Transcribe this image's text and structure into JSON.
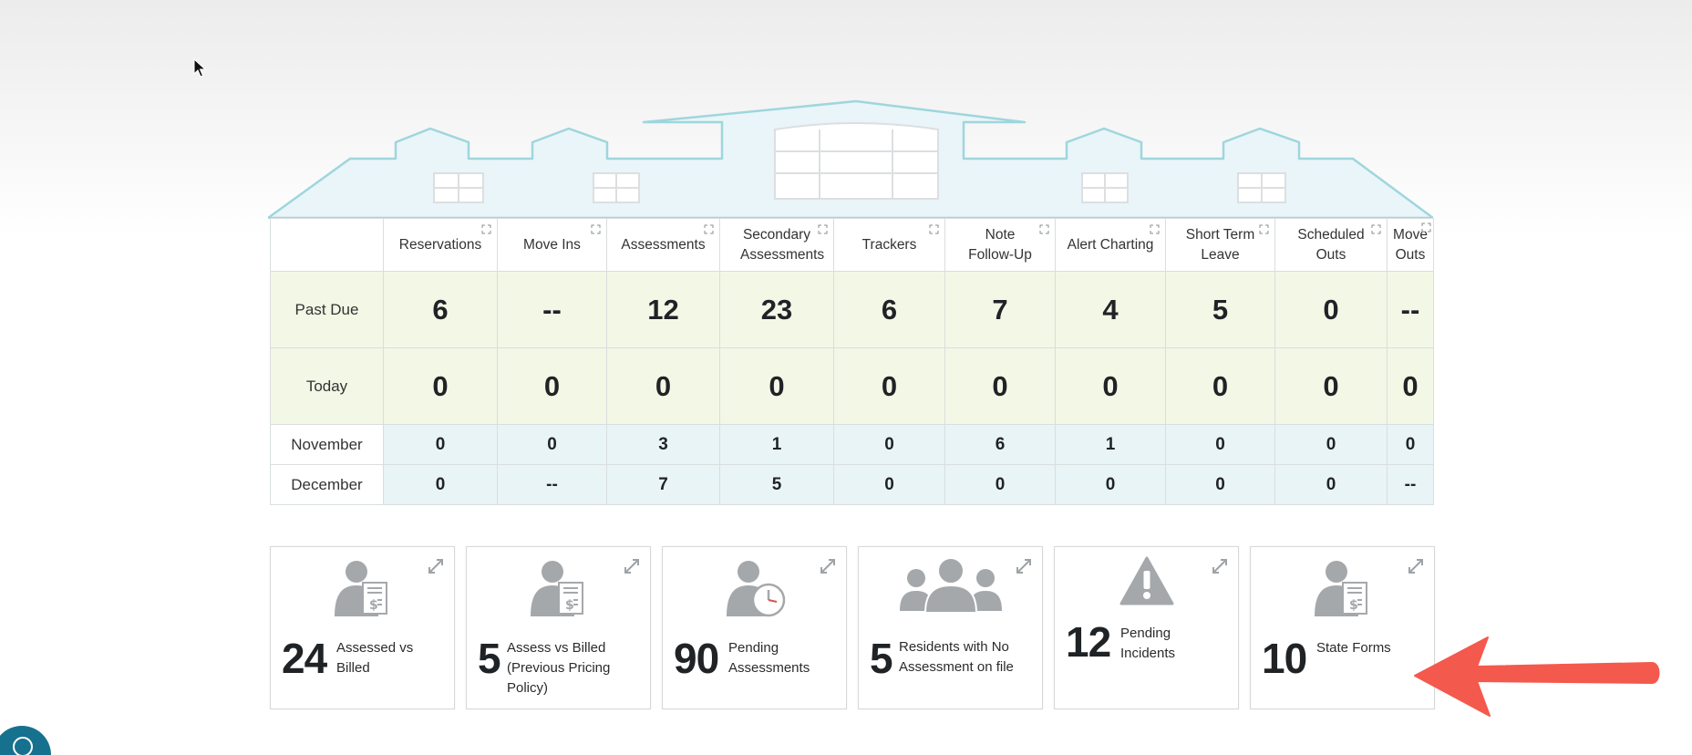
{
  "table": {
    "columns": [
      "Reservations",
      "Move Ins",
      "Assessments",
      "Secondary Assessments",
      "Trackers",
      "Note Follow-Up",
      "Alert Charting",
      "Short Term Leave",
      "Scheduled Outs",
      "Move Outs"
    ],
    "rows": [
      {
        "label": "Past Due",
        "values": [
          "6",
          "--",
          "12",
          "23",
          "6",
          "7",
          "4",
          "5",
          "0",
          "--"
        ]
      },
      {
        "label": "Today",
        "values": [
          "0",
          "0",
          "0",
          "0",
          "0",
          "0",
          "0",
          "0",
          "0",
          "0"
        ]
      },
      {
        "label": "November",
        "values": [
          "0",
          "0",
          "3",
          "1",
          "0",
          "6",
          "1",
          "0",
          "0",
          "0"
        ]
      },
      {
        "label": "December",
        "values": [
          "0",
          "--",
          "7",
          "5",
          "0",
          "0",
          "0",
          "0",
          "0",
          "--"
        ]
      }
    ]
  },
  "cards": [
    {
      "number": "24",
      "label": "Assessed vs Billed",
      "icon": "person-invoice-icon"
    },
    {
      "number": "5",
      "label": "Assess vs Billed (Previous Pricing Policy)",
      "icon": "person-invoice-icon"
    },
    {
      "number": "90",
      "label": "Pending Assessments",
      "icon": "person-clock-icon"
    },
    {
      "number": "5",
      "label": "Residents with No Assessment on file",
      "icon": "group-people-icon"
    },
    {
      "number": "12",
      "label": "Pending Incidents",
      "icon": "warning-icon"
    },
    {
      "number": "10",
      "label": "State Forms",
      "icon": "person-invoice-icon"
    }
  ],
  "colors": {
    "roof_stroke": "#9fd6dd",
    "roof_fill": "#e9f5f8",
    "row_highlight": "#f3f7e6",
    "row_month": "#e9f4f7",
    "arrow": "#f4594d",
    "help_button": "#16718f",
    "icon_gray": "#a5a8ab"
  }
}
